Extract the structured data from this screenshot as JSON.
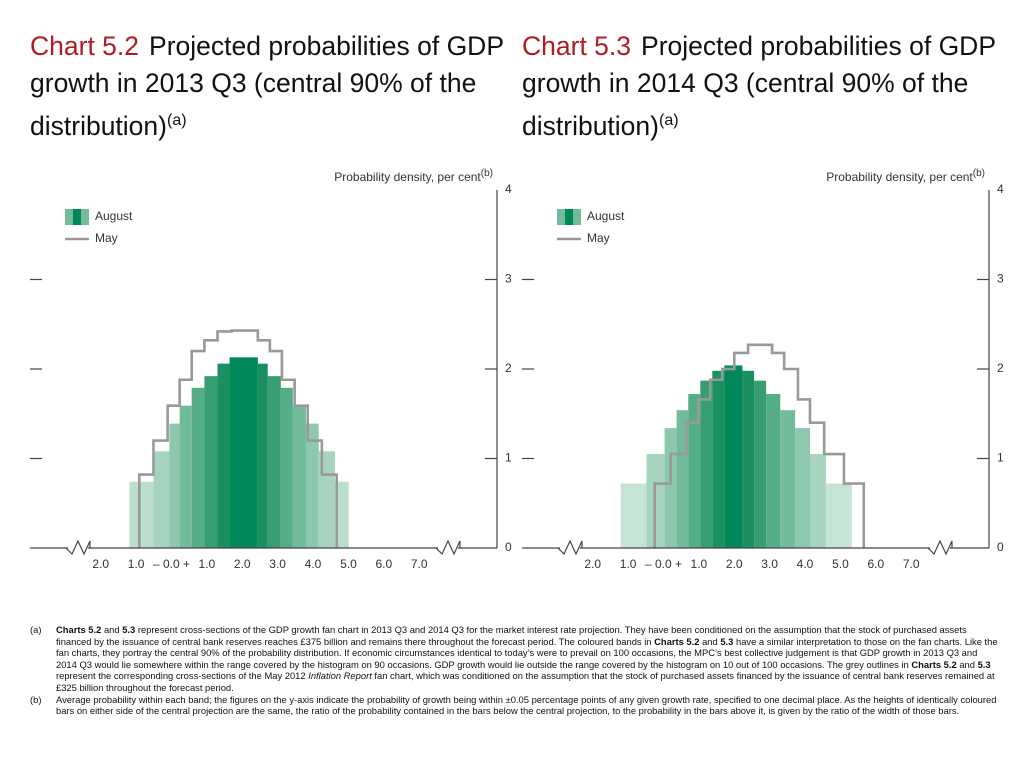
{
  "chart_data": [
    {
      "type": "histogram",
      "label": "Chart 5.2",
      "title": "Projected probabilities of GDP growth in 2013 Q3 (central 90% of the distribution)",
      "title_note": "(a)",
      "ylabel": "Probability density, per cent",
      "ylabel_note": "(b)",
      "xlim": [
        -4,
        9.2
      ],
      "ylim": [
        0,
        4
      ],
      "yticks": [
        0,
        1,
        2,
        3,
        4
      ],
      "xticks": [
        {
          "value": -2,
          "label": "2.0"
        },
        {
          "value": -1,
          "label": "1.0"
        },
        {
          "value": 0,
          "label": "– 0.0 +"
        },
        {
          "value": 1,
          "label": "1.0"
        },
        {
          "value": 2,
          "label": "2.0"
        },
        {
          "value": 3,
          "label": "3.0"
        },
        {
          "value": 4,
          "label": "4.0"
        },
        {
          "value": 5,
          "label": "5.0"
        },
        {
          "value": 6,
          "label": "6.0"
        },
        {
          "value": 7,
          "label": "7.0"
        }
      ],
      "series": [
        {
          "name": "August",
          "kind": "bar",
          "bins": [
            -1.19,
            -0.51,
            -0.06,
            0.23,
            0.57,
            0.93,
            1.3,
            1.64,
            2.44,
            2.72,
            3.09,
            3.43,
            3.8,
            4.16,
            4.62,
            5.01
          ],
          "values": [
            0.74,
            1.08,
            1.39,
            1.59,
            1.79,
            1.92,
            2.06,
            2.13,
            2.06,
            1.92,
            1.79,
            1.59,
            1.39,
            1.08,
            0.74
          ],
          "colors": [
            "#bcdfcd",
            "#a6d4bf",
            "#8dc8ae",
            "#72bb9b",
            "#55ad87",
            "#379e72",
            "#1a9060",
            "#00875a",
            "#1a9060",
            "#379e72",
            "#55ad87",
            "#72bb9b",
            "#8dc8ae",
            "#a6d4bf",
            "#bcdfcd"
          ]
        },
        {
          "name": "May",
          "kind": "step",
          "color": "#999999",
          "bins": [
            -0.91,
            -0.51,
            -0.11,
            0.23,
            0.57,
            0.93,
            1.3,
            1.7,
            2.44,
            2.78,
            3.12,
            3.48,
            3.85,
            4.25,
            4.67
          ],
          "values": [
            0.82,
            1.2,
            1.59,
            1.88,
            2.2,
            2.32,
            2.42,
            2.43,
            2.32,
            2.2,
            1.88,
            1.59,
            1.2,
            0.82
          ]
        }
      ]
    },
    {
      "type": "histogram",
      "label": "Chart 5.3",
      "title": "Projected probabilities of GDP growth in 2014 Q3 (central 90% of the distribution)",
      "title_note": "(a)",
      "ylabel": "Probability density, per cent",
      "ylabel_note": "(b)",
      "xlim": [
        -4,
        9.2
      ],
      "ylim": [
        0,
        4
      ],
      "yticks": [
        0,
        1,
        2,
        3,
        4
      ],
      "xticks": [
        {
          "value": -2,
          "label": "2.0"
        },
        {
          "value": -1,
          "label": "1.0"
        },
        {
          "value": 0,
          "label": "– 0.0 +"
        },
        {
          "value": 1,
          "label": "1.0"
        },
        {
          "value": 2,
          "label": "2.0"
        },
        {
          "value": 3,
          "label": "3.0"
        },
        {
          "value": 4,
          "label": "4.0"
        },
        {
          "value": 5,
          "label": "5.0"
        },
        {
          "value": 6,
          "label": "6.0"
        },
        {
          "value": 7,
          "label": "7.0"
        }
      ],
      "series": [
        {
          "name": "August",
          "kind": "bar",
          "bins": [
            -1.21,
            -0.48,
            0.03,
            0.37,
            0.7,
            1.04,
            1.38,
            1.72,
            2.23,
            2.56,
            2.9,
            3.3,
            3.72,
            4.14,
            4.59,
            5.32
          ],
          "values": [
            0.72,
            1.05,
            1.34,
            1.54,
            1.72,
            1.87,
            1.98,
            2.04,
            1.98,
            1.87,
            1.72,
            1.54,
            1.34,
            1.05,
            0.72
          ],
          "colors": [
            "#c6e4d4",
            "#a6d4bf",
            "#8dc8ae",
            "#72bb9b",
            "#55ad87",
            "#379e72",
            "#1a9060",
            "#00875a",
            "#1a9060",
            "#379e72",
            "#55ad87",
            "#72bb9b",
            "#8dc8ae",
            "#a6d4bf",
            "#c6e4d4"
          ]
        },
        {
          "name": "May",
          "kind": "step",
          "color": "#999999",
          "bins": [
            -0.25,
            0.2,
            0.65,
            0.99,
            1.32,
            1.66,
            2.0,
            2.39,
            3.07,
            3.41,
            3.8,
            4.14,
            4.54,
            5.1,
            5.66
          ],
          "values": [
            0.72,
            1.05,
            1.4,
            1.66,
            1.88,
            2.0,
            2.18,
            2.27,
            2.18,
            2.0,
            1.66,
            1.4,
            1.05,
            0.72
          ]
        }
      ]
    }
  ],
  "notes": [
    {
      "marker": "(a)",
      "parts": [
        {
          "text": "Charts 5.2",
          "bold": true
        },
        {
          "text": " and "
        },
        {
          "text": "5.3",
          "bold": true
        },
        {
          "text": " represent cross-sections of the GDP growth fan chart in 2013 Q3 and 2014 Q3 for the market interest rate projection.  They have been conditioned on the assumption that the stock of purchased assets financed by the issuance of central bank reserves reaches £375 billion and remains there throughout the forecast period.  The coloured bands in "
        },
        {
          "text": "Charts 5.2",
          "bold": true
        },
        {
          "text": " and "
        },
        {
          "text": "5.3",
          "bold": true
        },
        {
          "text": " have a similar interpretation to those on the fan charts.  Like the fan charts, they portray the central 90% of the probability distribution.  If economic circumstances identical to today’s were to prevail on 100 occasions, the MPC’s best collective judgement is that GDP growth in 2013 Q3 and 2014 Q3 would lie somewhere within the range covered by the histogram on 90 occasions.  GDP growth would lie outside the range covered by the histogram on 10 out of 100 occasions.  The grey outlines in "
        },
        {
          "text": "Charts 5.2",
          "bold": true
        },
        {
          "text": " and "
        },
        {
          "text": "5.3",
          "bold": true
        },
        {
          "text": " represent the corresponding cross-sections of the May 2012 "
        },
        {
          "text": "Inflation Report",
          "italic": true
        },
        {
          "text": " fan chart, which was conditioned on the assumption that the stock of purchased assets financed by the issuance of central bank reserves remained at £325 billion throughout the forecast period."
        }
      ]
    },
    {
      "marker": "(b)",
      "parts": [
        {
          "text": "Average probability within each band;  the figures on the y-axis indicate the probability of growth being within ±0.05 percentage points of any given growth rate, specified to one decimal place.  As the heights of identically coloured bars on either side of the central projection are the same, the ratio of the probability contained in the bars below the central projection, to the probability in the bars above it, is given by the ratio of the width of those bars."
        }
      ]
    }
  ]
}
